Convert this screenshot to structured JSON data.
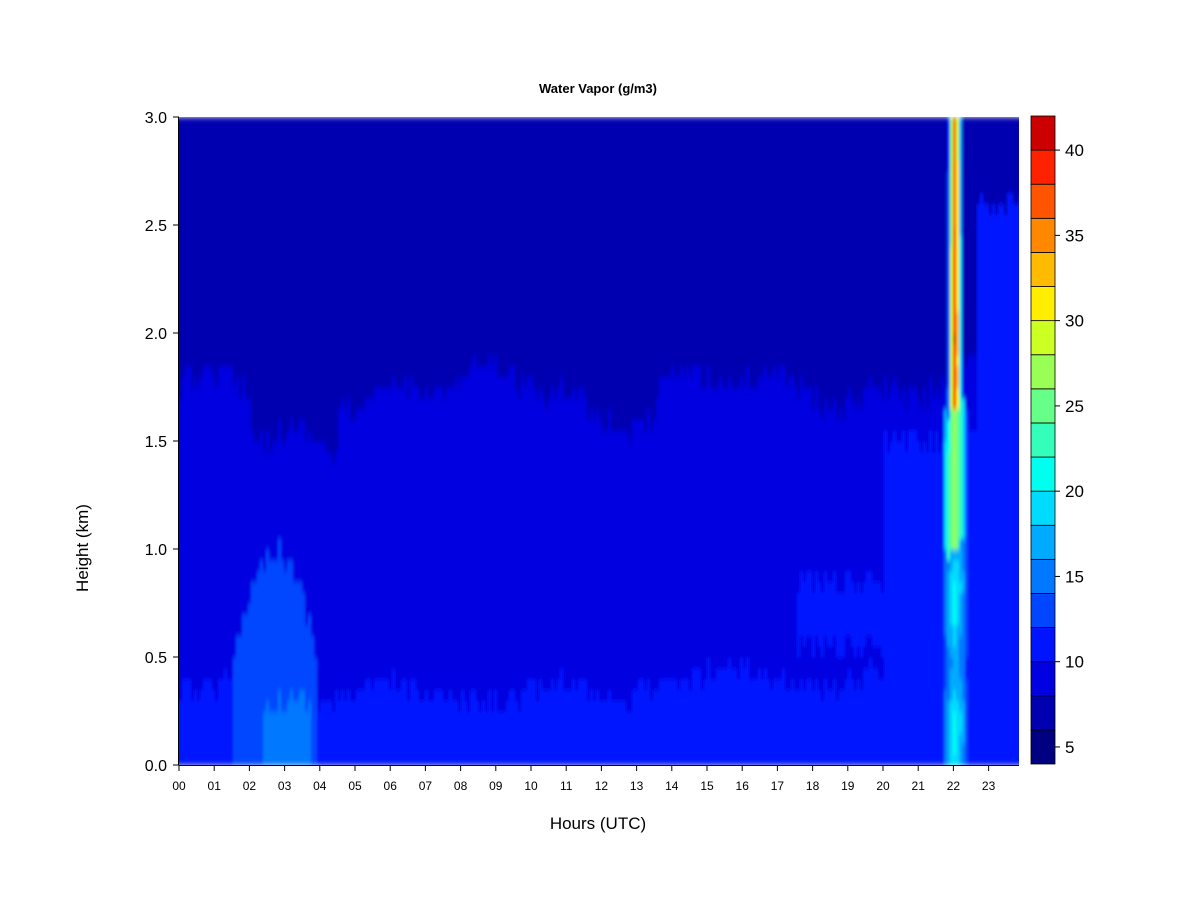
{
  "chart_data": {
    "type": "heatmap",
    "title": "Water Vapor (g/m3)",
    "xlabel": "Hours (UTC)",
    "ylabel": "Height (km)",
    "x_ticks": [
      "00",
      "01",
      "02",
      "03",
      "04",
      "05",
      "06",
      "07",
      "08",
      "09",
      "10",
      "11",
      "12",
      "13",
      "14",
      "15",
      "16",
      "17",
      "18",
      "19",
      "20",
      "21",
      "22",
      "23"
    ],
    "y_ticks": [
      "0.0",
      "0.5",
      "1.0",
      "1.5",
      "2.0",
      "2.5",
      "3.0"
    ],
    "xlim": [
      0,
      23.9
    ],
    "ylim": [
      0,
      3.0
    ],
    "colorbar": {
      "levels": [
        4,
        6,
        8,
        10,
        12,
        14,
        16,
        18,
        20,
        22,
        24,
        26,
        28,
        30,
        32,
        34,
        36,
        38,
        40,
        42
      ],
      "colors": [
        "#000080",
        "#0000b0",
        "#0000e0",
        "#0014ff",
        "#0046ff",
        "#0078ff",
        "#00aaff",
        "#00dcff",
        "#00ffee",
        "#33ffbb",
        "#66ff88",
        "#99ff55",
        "#ccff22",
        "#ffee00",
        "#ffbb00",
        "#ff8800",
        "#ff5500",
        "#ff2200",
        "#cc0000",
        "#8b0000"
      ],
      "tick_labels": [
        "5",
        "10",
        "15",
        "20",
        "25",
        "30",
        "35",
        "40"
      ]
    },
    "layers": [
      {
        "height_range_km": [
          0.0,
          0.3
        ],
        "typical_value": 11.5,
        "note_hours": "values ~14 near 02-04 UTC"
      },
      {
        "height_range_km": [
          0.3,
          1.7
        ],
        "typical_value": 9.5
      },
      {
        "height_range_km": [
          1.7,
          2.8
        ],
        "typical_value": 7.5
      },
      {
        "height_range_km": [
          2.8,
          3.0
        ],
        "typical_value": 6
      }
    ],
    "peak": {
      "hour": 22.0,
      "height_range_km": [
        0.0,
        3.0
      ],
      "max_value": 41
    }
  }
}
